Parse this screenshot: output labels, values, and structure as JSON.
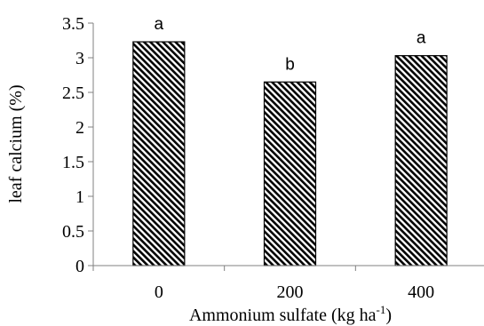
{
  "chart_data": {
    "type": "bar",
    "categories": [
      "0",
      "200",
      "400"
    ],
    "values": [
      3.23,
      2.65,
      3.03
    ],
    "significance_labels": [
      "a",
      "b",
      "a"
    ],
    "xlabel": "Ammonium sulfate (kg ha",
    "xlabel_superscript": "-1",
    "xlabel_suffix": ")",
    "ylabel": "leaf calcium  (%)",
    "ylim": [
      0,
      3.5
    ],
    "yticks": [
      "0",
      "0.5",
      "1",
      "1.5",
      "2",
      "2.5",
      "3",
      "3.5"
    ],
    "grid": false,
    "bar_fill": "diagonal-hatch",
    "bar_colors": {
      "stroke": "#000000",
      "fill": "#ffffff",
      "hatch": "#000000"
    }
  }
}
